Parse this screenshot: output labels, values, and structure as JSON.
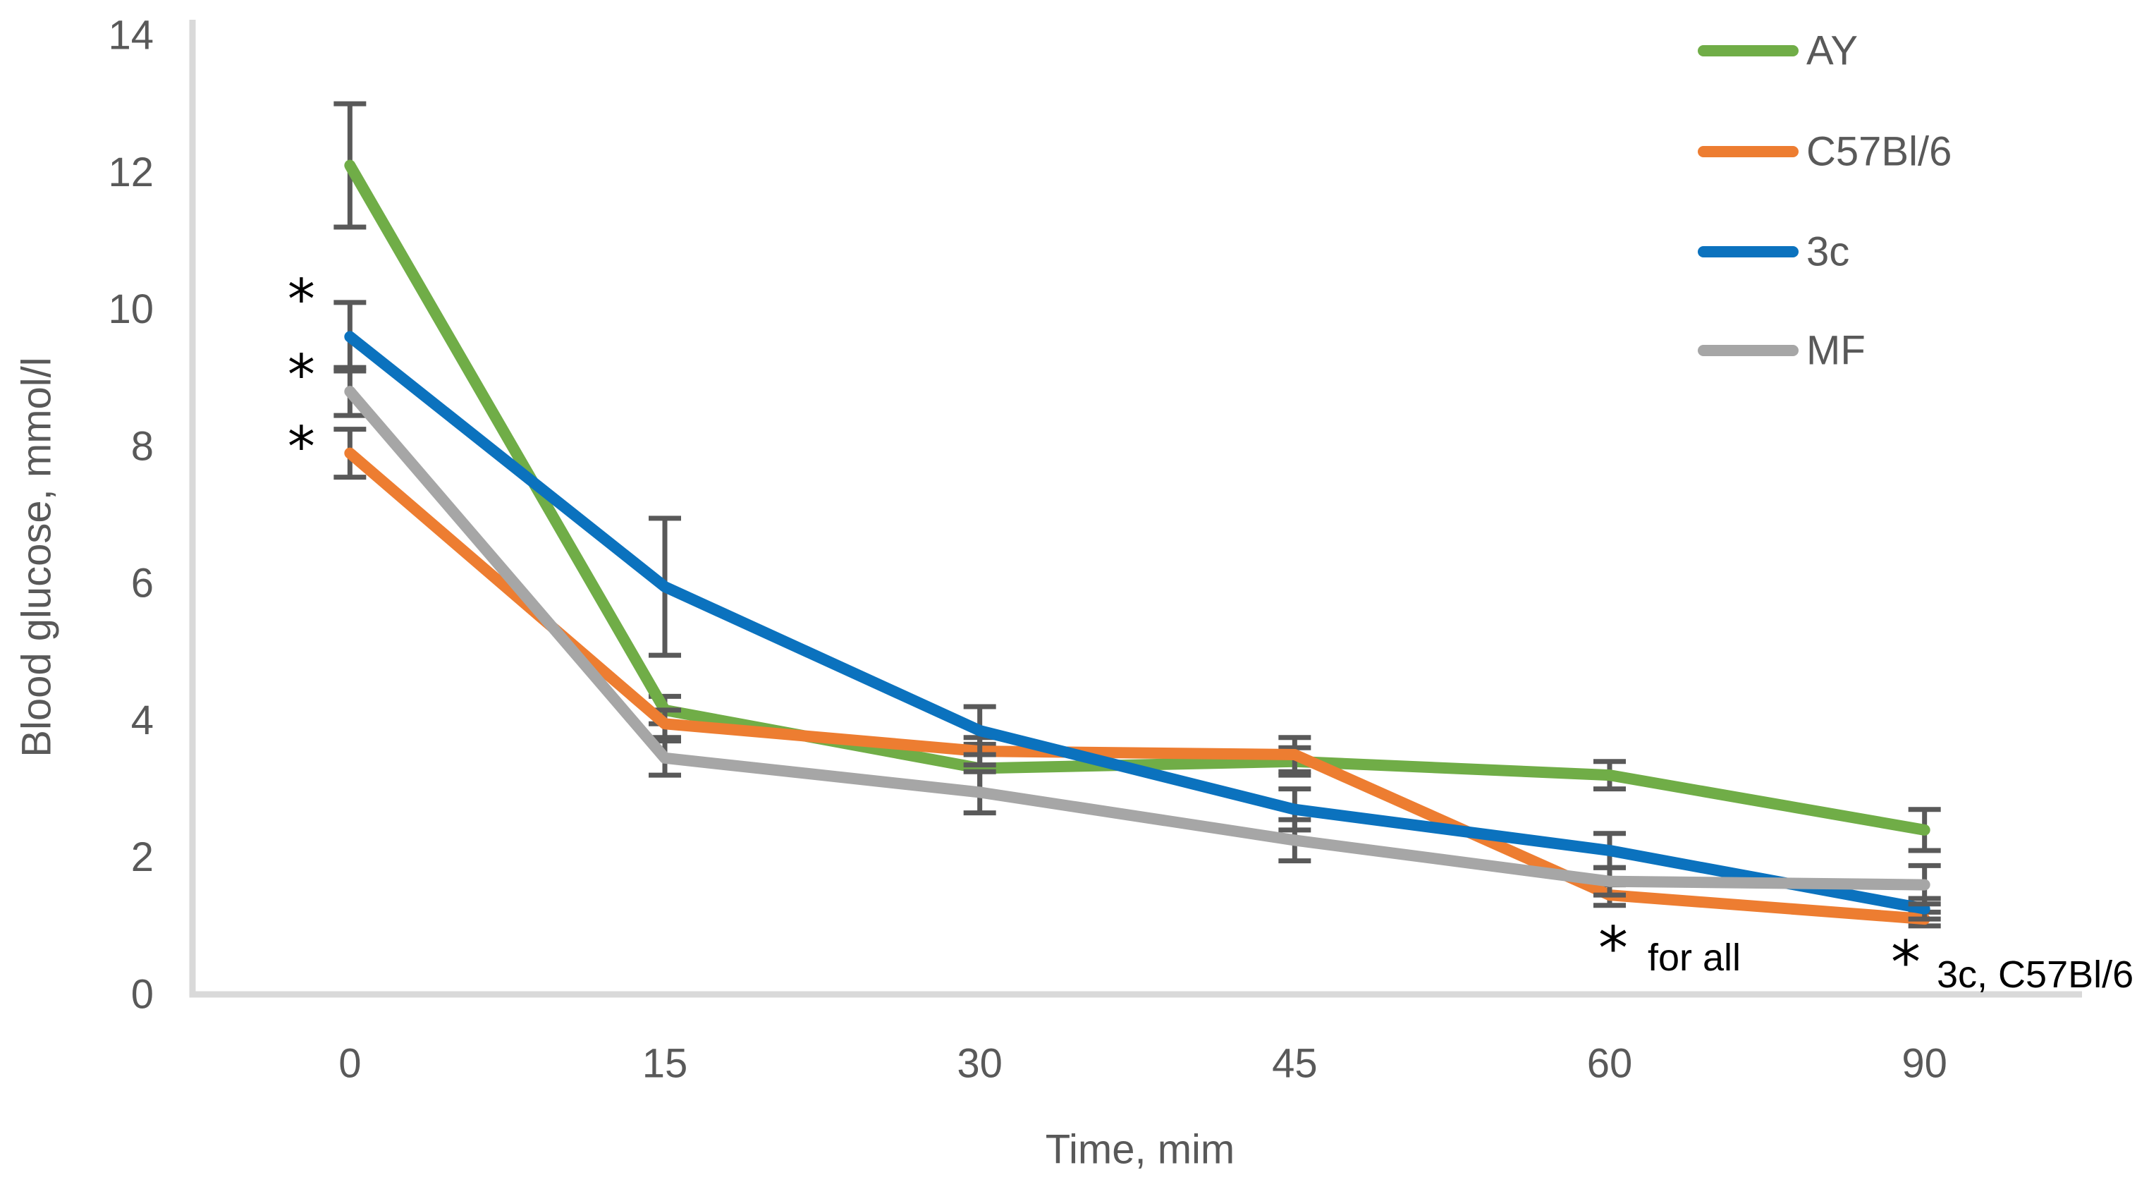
{
  "chart_data": {
    "type": "line",
    "title": "",
    "xlabel": "Time, mim",
    "ylabel": "Blood glucose, mmol/l",
    "ylim": [
      0,
      14
    ],
    "grid": false,
    "legend_position": "top-right",
    "categories": [
      "0",
      "15",
      "30",
      "45",
      "60",
      "90"
    ],
    "y_ticks": [
      "0",
      "2",
      "4",
      "6",
      "8",
      "10",
      "12",
      "14"
    ],
    "series": [
      {
        "name": "AY",
        "color": "#70AD47",
        "values": [
          12.1,
          4.15,
          3.3,
          3.4,
          3.2,
          2.4
        ],
        "errors": [
          0.9,
          0.2,
          0.35,
          0.2,
          0.2,
          0.3
        ]
      },
      {
        "name": "C57Bl/6",
        "color": "#ED7D31",
        "values": [
          7.9,
          3.95,
          3.55,
          3.5,
          1.45,
          1.1
        ],
        "errors": [
          0.35,
          0.2,
          0.2,
          0.25,
          0.15,
          0.1
        ]
      },
      {
        "name": "3c",
        "color": "#0B72BE",
        "values": [
          9.6,
          5.95,
          3.85,
          2.7,
          2.1,
          1.25
        ],
        "errors": [
          0.5,
          1.0,
          0.35,
          0.3,
          0.25,
          0.15
        ]
      },
      {
        "name": "MF",
        "color": "#A6A6A6",
        "values": [
          8.8,
          3.45,
          2.95,
          2.25,
          1.65,
          1.6
        ],
        "errors": [
          0.35,
          0.25,
          0.3,
          0.3,
          0.2,
          0.28
        ]
      }
    ],
    "annotations": {
      "baseline_markers": [
        {
          "symbol": "*",
          "at_category": "0",
          "value": 10.25
        },
        {
          "symbol": "*",
          "at_category": "0",
          "value": 9.15
        },
        {
          "symbol": "*",
          "at_category": "0",
          "value": 8.1
        }
      ],
      "notes": [
        {
          "symbol": "*",
          "text": "for all",
          "at_category": "60"
        },
        {
          "symbol": "*",
          "text": "3c, C57Bl/6",
          "at_category": "90"
        }
      ]
    },
    "colors": {
      "axis_frame": "#D9D9D9",
      "error_bars": "#595959",
      "tick_text": "#595959",
      "annotation_text": "#000000"
    }
  }
}
